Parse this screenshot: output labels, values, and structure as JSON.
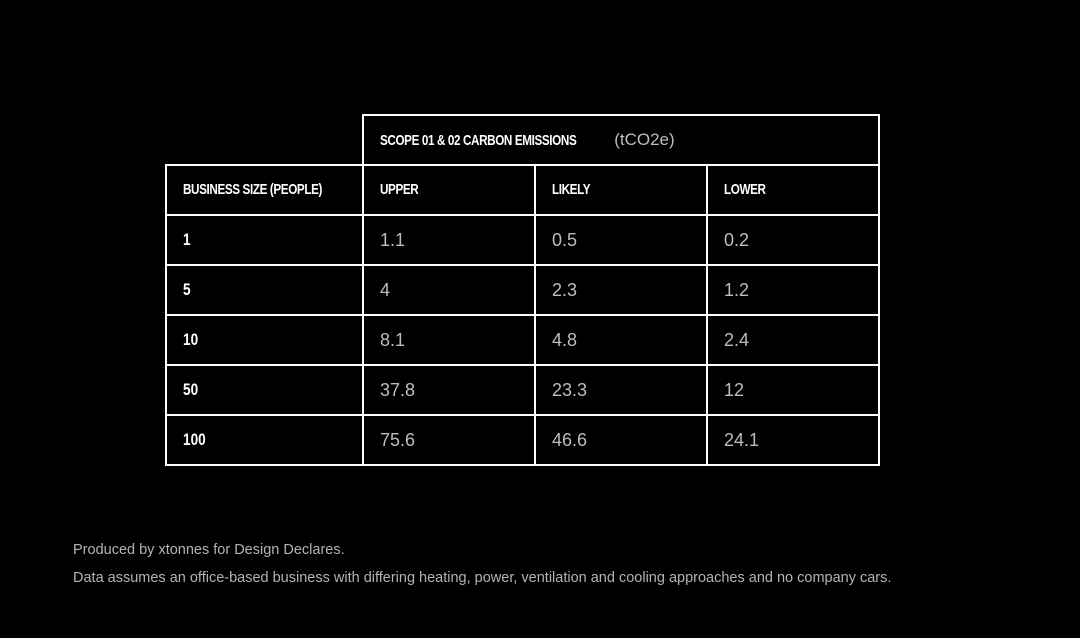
{
  "table": {
    "group_header": {
      "title": "SCOPE 01 & 02 CARBON EMISSIONS",
      "unit": "(tCO2e)"
    },
    "columns": [
      "BUSINESS SIZE (PEOPLE)",
      "UPPER",
      "LIKELY",
      "LOWER"
    ],
    "rows": [
      [
        "1",
        "1.1",
        "0.5",
        "0.2"
      ],
      [
        "5",
        "4",
        "2.3",
        "1.2"
      ],
      [
        "10",
        "8.1",
        "4.8",
        "2.4"
      ],
      [
        "50",
        "37.8",
        "23.3",
        "12"
      ],
      [
        "100",
        "75.6",
        "46.6",
        "24.1"
      ]
    ]
  },
  "footer": {
    "credit": "Produced by xtonnes for Design Declares.",
    "note": "Data assumes an office-based business with differing heating, power, ventilation and cooling approaches and no company cars."
  }
}
